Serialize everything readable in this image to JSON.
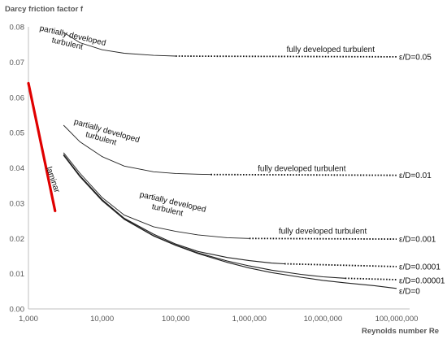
{
  "chart_data": {
    "type": "line",
    "title": "",
    "ylabel": "Darcy friction factor f",
    "xlabel": "Reynolds number Re",
    "x_scale": "log",
    "xlim": [
      1000,
      100000000
    ],
    "ylim": [
      0,
      0.08
    ],
    "x_ticks": [
      1000,
      10000,
      100000,
      1000000,
      10000000,
      100000000
    ],
    "x_tick_labels": [
      "1,000",
      "10,000",
      "100,000",
      "1,000,000",
      "10,000,000",
      "100,000,000"
    ],
    "y_ticks": [
      0,
      0.01,
      0.02,
      0.03,
      0.04,
      0.05,
      0.06,
      0.07,
      0.08
    ],
    "y_tick_labels": [
      "0.00",
      "0.01",
      "0.02",
      "0.03",
      "0.04",
      "0.05",
      "0.06",
      "0.07",
      "0.08"
    ],
    "grid": false,
    "laminar": {
      "label": "laminar",
      "color": "#e00000",
      "x": [
        1000,
        2300
      ],
      "y": [
        0.064,
        0.0278
      ]
    },
    "series": [
      {
        "name": "ε/D=0.05",
        "x": [
          3000,
          5000,
          10000,
          20000,
          50000,
          100000
        ],
        "y": [
          0.0784,
          0.0755,
          0.0735,
          0.0725,
          0.0719,
          0.0717
        ],
        "x_full": [
          100000,
          100000000
        ],
        "y_full": [
          0.0717,
          0.0715
        ]
      },
      {
        "name": "ε/D=0.01",
        "x": [
          3000,
          5000,
          10000,
          20000,
          50000,
          100000,
          200000,
          300000
        ],
        "y": [
          0.0521,
          0.0474,
          0.0432,
          0.0405,
          0.0389,
          0.0384,
          0.0382,
          0.0381
        ],
        "x_full": [
          300000,
          100000000
        ],
        "y_full": [
          0.0381,
          0.0379
        ]
      },
      {
        "name": "ε/D=0.001",
        "x": [
          3000,
          5000,
          10000,
          20000,
          50000,
          100000,
          200000,
          500000,
          1000000
        ],
        "y": [
          0.0443,
          0.0385,
          0.0316,
          0.0266,
          0.0233,
          0.022,
          0.021,
          0.0202,
          0.02
        ],
        "x_full": [
          1000000,
          100000000
        ],
        "y_full": [
          0.02,
          0.0198
        ]
      },
      {
        "name": "ε/D=0.0001",
        "x": [
          3000,
          5000,
          10000,
          20000,
          50000,
          100000,
          200000,
          500000,
          1000000,
          2000000,
          3000000
        ],
        "y": [
          0.0438,
          0.0378,
          0.031,
          0.0257,
          0.0212,
          0.0184,
          0.0163,
          0.0146,
          0.0137,
          0.013,
          0.0128
        ],
        "x_full": [
          3000000,
          100000000
        ],
        "y_full": [
          0.0128,
          0.012
        ]
      },
      {
        "name": "ε/D=0.00001",
        "x": [
          3000,
          5000,
          10000,
          20000,
          50000,
          100000,
          200000,
          500000,
          1000000,
          2000000,
          5000000,
          10000000,
          20000000
        ],
        "y": [
          0.0436,
          0.0376,
          0.0308,
          0.0255,
          0.0208,
          0.0181,
          0.0159,
          0.0136,
          0.0122,
          0.011,
          0.0098,
          0.0091,
          0.0087
        ],
        "x_full": [
          20000000,
          100000000
        ],
        "y_full": [
          0.0087,
          0.0083
        ]
      },
      {
        "name": "ε/D=0",
        "x": [
          3000,
          5000,
          10000,
          20000,
          50000,
          100000,
          200000,
          500000,
          1000000,
          2000000,
          5000000,
          10000000,
          20000000,
          50000000,
          100000000
        ],
        "y": [
          0.0436,
          0.0375,
          0.0307,
          0.0254,
          0.0207,
          0.018,
          0.0157,
          0.0132,
          0.0116,
          0.0103,
          0.009,
          0.0081,
          0.0074,
          0.0066,
          0.0058
        ],
        "x_full": [],
        "y_full": []
      }
    ],
    "annotations": [
      {
        "id": "pdt-005",
        "lines": [
          "partially developed",
          "turbulent"
        ],
        "x": 1400,
        "y": 0.079,
        "rotate": 13
      },
      {
        "id": "fdt-005",
        "lines": [
          "fully developed turbulent"
        ],
        "x": 3200000,
        "y": 0.0729,
        "rotate": 0
      },
      {
        "id": "pdt-001",
        "lines": [
          "partially developed",
          "turbulent"
        ],
        "x": 4100,
        "y": 0.0525,
        "rotate": 16
      },
      {
        "id": "fdt-001",
        "lines": [
          "fully developed turbulent"
        ],
        "x": 1300000,
        "y": 0.0391,
        "rotate": 0
      },
      {
        "id": "pdt-0001",
        "lines": [
          "partially developed",
          "turbulent"
        ],
        "x": 32000,
        "y": 0.0318,
        "rotate": 13
      },
      {
        "id": "fdt-0001",
        "lines": [
          "fully developed turbulent"
        ],
        "x": 2500000,
        "y": 0.0213,
        "rotate": 0
      }
    ]
  }
}
